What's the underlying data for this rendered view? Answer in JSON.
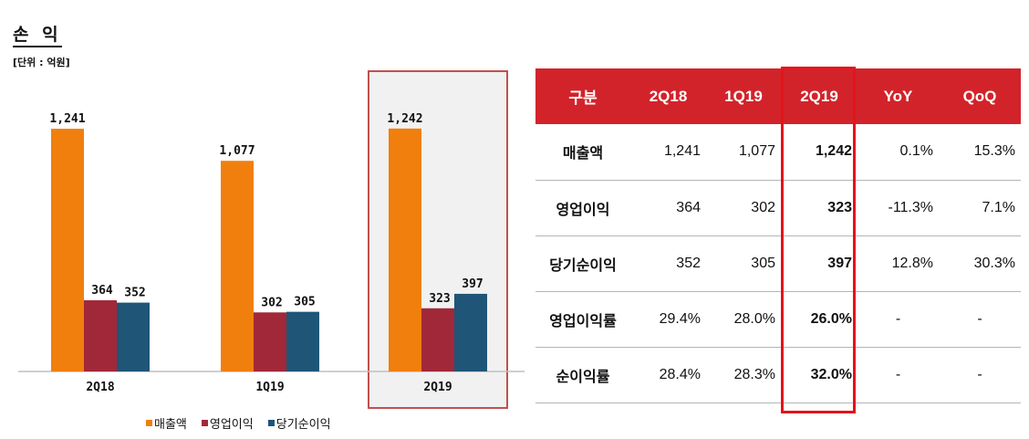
{
  "title": "손 익",
  "unit": "[단위 : 억원]",
  "chart_data": {
    "type": "bar",
    "categories": [
      "2Q18",
      "1Q19",
      "2Q19"
    ],
    "highlight_category": "2Q19",
    "series": [
      {
        "name": "매출액",
        "values": [
          1241,
          1077,
          1242
        ],
        "labels": [
          "1,241",
          "1,077",
          "1,242"
        ],
        "color": "#f07f0e"
      },
      {
        "name": "영업이익",
        "values": [
          364,
          302,
          323
        ],
        "labels": [
          "364",
          "302",
          "323"
        ],
        "color": "#a12838"
      },
      {
        "name": "당기순이익",
        "values": [
          352,
          305,
          397
        ],
        "labels": [
          "352",
          "305",
          "397"
        ],
        "color": "#1f5577"
      }
    ],
    "ylim": [
      0,
      1400
    ],
    "legend_position": "bottom"
  },
  "table": {
    "headers": [
      "구분",
      "2Q18",
      "1Q19",
      "2Q19",
      "YoY",
      "QoQ"
    ],
    "rows": [
      {
        "label": "매출액",
        "cells": [
          "1,241",
          "1,077",
          "1,242",
          "0.1%",
          "15.3%"
        ]
      },
      {
        "label": "영업이익",
        "cells": [
          "364",
          "302",
          "323",
          "-11.3%",
          "7.1%"
        ]
      },
      {
        "label": "당기순이익",
        "cells": [
          "352",
          "305",
          "397",
          "12.8%",
          "30.3%"
        ]
      },
      {
        "label": "영업이익률",
        "cells": [
          "29.4%",
          "28.0%",
          "26.0%",
          "-",
          "-"
        ]
      },
      {
        "label": "순이익률",
        "cells": [
          "28.4%",
          "28.3%",
          "32.0%",
          "-",
          "-"
        ]
      }
    ],
    "highlight_column": "2Q19",
    "header_color": "#d2232a",
    "highlight_color": "#e3141b"
  }
}
